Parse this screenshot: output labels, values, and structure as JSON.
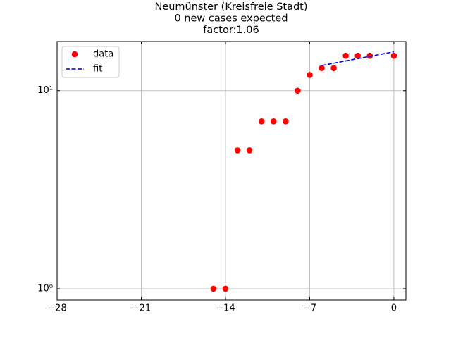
{
  "chart_data": {
    "type": "scatter",
    "title": [
      "Neumünster (Kreisfreie Stadt)",
      "0 new cases expected",
      "factor:1.06"
    ],
    "series": [
      {
        "name": "data",
        "kind": "scatter",
        "color": "#ff0000",
        "x": [
          -15,
          -14,
          -13,
          -12,
          -11,
          -10,
          -9,
          -8,
          -7,
          -6,
          -5,
          -4,
          -3,
          -2,
          0
        ],
        "values": [
          1,
          1,
          5,
          5,
          7,
          7,
          7,
          10,
          12,
          13,
          13,
          15,
          15,
          15,
          15
        ]
      },
      {
        "name": "fit",
        "kind": "line",
        "dash": "dashed",
        "color": "#0000dd",
        "x": [
          -6,
          -5,
          -4,
          -3,
          -2,
          -1,
          0
        ],
        "values": [
          13.4,
          13.76,
          14.13,
          14.51,
          14.9,
          15.3,
          15.7
        ]
      }
    ],
    "xlim": [
      -28,
      1
    ],
    "xticks": [
      {
        "value": -28,
        "label": "−28"
      },
      {
        "value": -21,
        "label": "−21"
      },
      {
        "value": -14,
        "label": "−14"
      },
      {
        "value": -7,
        "label": "−7"
      },
      0
    ],
    "ylim": [
      0.877,
      17.7
    ],
    "log_y": true,
    "yticks": [
      {
        "value": 1,
        "label": "10⁰"
      },
      {
        "value": 10,
        "label": "10¹"
      }
    ],
    "grid": true,
    "legend": "upper-left"
  }
}
